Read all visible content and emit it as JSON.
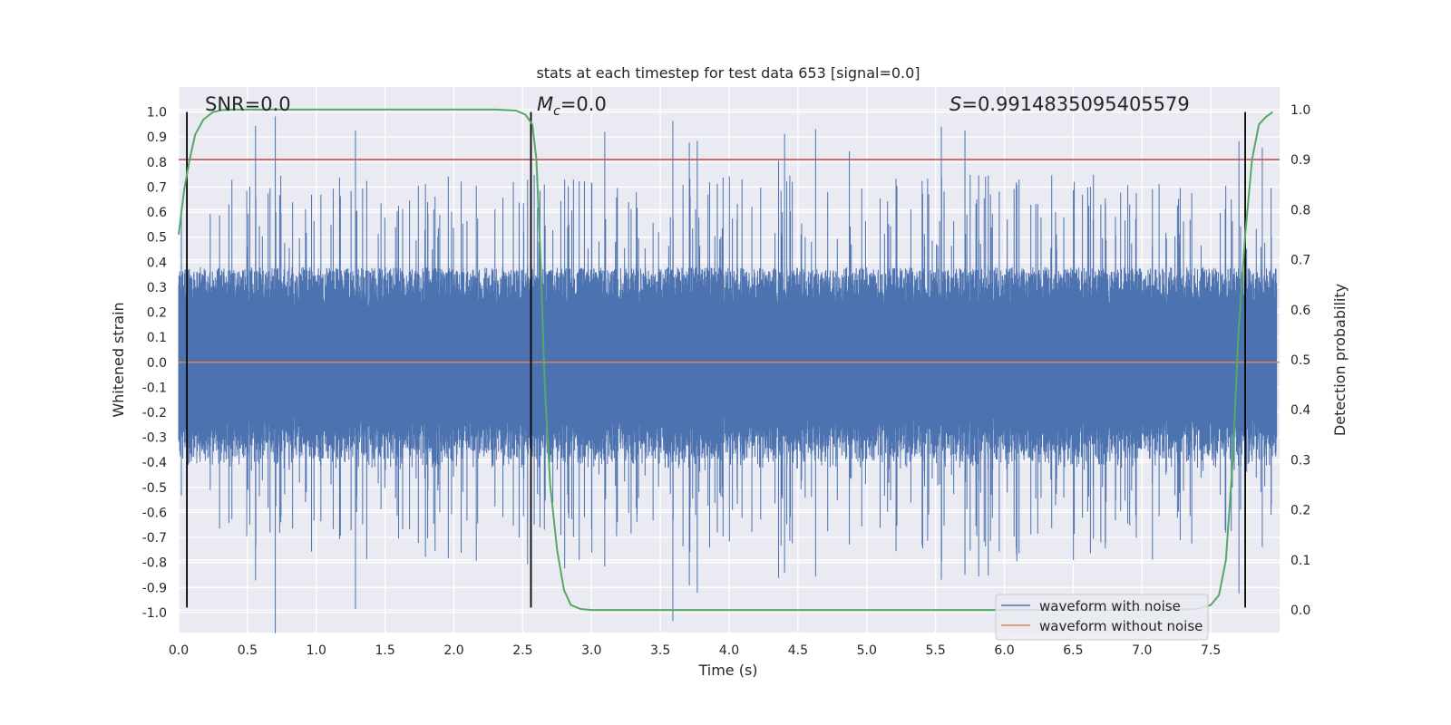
{
  "chart_data": {
    "type": "line",
    "title": "stats at each timestep for test data 653 [signal=0.0]",
    "xlabel": "Time (s)",
    "ylabel": "Whitened strain",
    "y2label": "Detection probability",
    "xlim": [
      0.0,
      8.0
    ],
    "ylim": [
      -1.08,
      1.1
    ],
    "y2lim": [
      -0.045,
      1.045
    ],
    "xticks": [
      "0.0",
      "0.5",
      "1.0",
      "1.5",
      "2.0",
      "2.5",
      "3.0",
      "3.5",
      "4.0",
      "4.5",
      "5.0",
      "5.5",
      "6.0",
      "6.5",
      "7.0",
      "7.5"
    ],
    "yticks": [
      "1.0",
      "0.9",
      "0.8",
      "0.7",
      "0.6",
      "0.5",
      "0.4",
      "0.3",
      "0.2",
      "0.1",
      "0.0",
      "-0.1",
      "-0.2",
      "-0.3",
      "-0.4",
      "-0.5",
      "-0.6",
      "-0.7",
      "-0.8",
      "-0.9",
      "-1.0"
    ],
    "y2ticks": [
      "1.0",
      "0.9",
      "0.8",
      "0.7",
      "0.6",
      "0.5",
      "0.4",
      "0.3",
      "0.2",
      "0.1",
      "0.0"
    ],
    "annotations": {
      "snr": "SNR=0.0",
      "mc_symbol": "M",
      "mc_sub": "c",
      "mc_value": "=0.0",
      "s_symbol": "S",
      "s_value": "=0.9914835095405579"
    },
    "threshold": {
      "value": 0.9,
      "axis": "right",
      "color": "#c44e52"
    },
    "vertical_lines": [
      0.06,
      2.56,
      7.75
    ],
    "series": [
      {
        "name": "waveform with noise",
        "color": "#4c72b0",
        "axis": "left",
        "description": "dense noise, amplitude mostly within ±0.4 with spikes up to ±1.0"
      },
      {
        "name": "waveform without noise",
        "color": "#dd8452",
        "axis": "left",
        "value": 0.0
      },
      {
        "name": "detection probability",
        "color": "#55a868",
        "axis": "right",
        "x": [
          0.0,
          0.04,
          0.08,
          0.12,
          0.18,
          0.25,
          0.32,
          0.4,
          0.5,
          0.7,
          1.0,
          1.5,
          2.0,
          2.3,
          2.45,
          2.52,
          2.57,
          2.6,
          2.63,
          2.66,
          2.7,
          2.75,
          2.8,
          2.85,
          2.92,
          3.0,
          3.5,
          4.0,
          5.0,
          6.0,
          7.0,
          7.4,
          7.5,
          7.56,
          7.61,
          7.66,
          7.7,
          7.75,
          7.8,
          7.85,
          7.9,
          7.95
        ],
        "y": [
          0.75,
          0.84,
          0.9,
          0.95,
          0.98,
          0.995,
          0.999,
          1.0,
          1.0,
          1.0,
          1.0,
          1.0,
          1.0,
          1.0,
          0.998,
          0.99,
          0.97,
          0.9,
          0.7,
          0.45,
          0.25,
          0.12,
          0.04,
          0.01,
          0.002,
          0.0,
          0.0,
          0.0,
          0.0,
          0.0,
          0.0,
          0.002,
          0.01,
          0.03,
          0.1,
          0.3,
          0.55,
          0.75,
          0.9,
          0.97,
          0.985,
          0.995
        ]
      }
    ],
    "legend": {
      "position": "bottom-right",
      "entries": [
        "waveform with noise",
        "waveform without noise"
      ]
    },
    "grid": true
  }
}
